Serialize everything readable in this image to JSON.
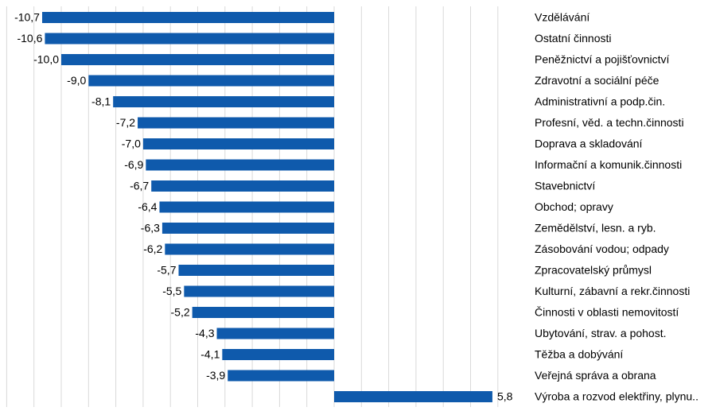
{
  "chart_data": {
    "type": "bar",
    "orientation": "horizontal",
    "categories": [
      "Vzdělávání",
      "Ostatní činnosti",
      "Peněžnictví a pojišťovnictví",
      "Zdravotní a sociální péče",
      "Administrativní a podp.čin.",
      "Profesní, věd. a techn.činnosti",
      "Doprava a skladování",
      "Informační a komunik.činnosti",
      "Stavebnictví",
      "Obchod; opravy",
      "Zemědělství, lesn. a ryb.",
      "Zásobování vodou; odpady",
      "Zpracovatelský průmysl",
      "Kulturní, zábavní a rekr.činnosti",
      "Činnosti v oblasti nemovitostí",
      "Ubytování, strav. a pohost.",
      "Těžba a dobývání",
      "Veřejná správa a obrana",
      "Výroba a rozvod elektřiny, plynu.."
    ],
    "values": [
      -10.7,
      -10.6,
      -10.0,
      -9.0,
      -8.1,
      -7.2,
      -7.0,
      -6.9,
      -6.7,
      -6.4,
      -6.3,
      -6.2,
      -5.7,
      -5.5,
      -5.2,
      -4.3,
      -4.1,
      -3.9,
      5.8
    ],
    "value_labels": [
      "-10,7",
      "-10,6",
      "-10,0",
      "-9,0",
      "-8,1",
      "-7,2",
      "-7,0",
      "-6,9",
      "-6,7",
      "-6,4",
      "-6,3",
      "-6,2",
      "-5,7",
      "-5,5",
      "-5,2",
      "-4,3",
      "-4,1",
      "-3,9",
      "5,8"
    ],
    "xlim": [
      -12,
      7
    ],
    "x_grid_step": 1,
    "grid": true,
    "tick_labels_shown": false,
    "legend": false,
    "bar_color": "#0f5aac",
    "grid_color": "#d9d9d9"
  }
}
